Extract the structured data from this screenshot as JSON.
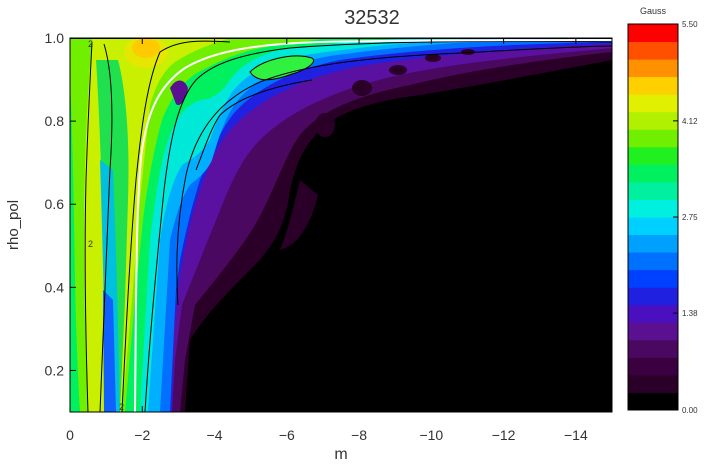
{
  "chart_data": {
    "type": "heatmap",
    "title": "32532",
    "xlabel": "m",
    "ylabel": "rho_pol",
    "xlim": [
      0,
      -15
    ],
    "ylim": [
      0.1,
      1.0
    ],
    "x_ticks": [
      0,
      -2,
      -4,
      -6,
      -8,
      -10,
      -12,
      -14
    ],
    "y_ticks": [
      0.2,
      0.4,
      0.6,
      0.8,
      1.0
    ],
    "x_tick_labels": [
      "0",
      "−2",
      "−4",
      "−6",
      "−8",
      "−10",
      "−12",
      "−14"
    ],
    "y_tick_labels": [
      "0.2",
      "0.4",
      "0.6",
      "0.8",
      "1.0"
    ],
    "colorbar": {
      "label": "Gauss",
      "range": [
        0.0,
        5.5
      ],
      "ticks": [
        0.0,
        1.38,
        2.75,
        4.12,
        5.5
      ],
      "tick_labels": [
        "0.00",
        "1.38",
        "2.75",
        "4.12",
        "5.50"
      ],
      "colors": [
        "#000000",
        "#2b0028",
        "#3a0040",
        "#4a0860",
        "#5a1090",
        "#4a10c0",
        "#2020e0",
        "#0040ff",
        "#0070ff",
        "#00a0ff",
        "#00d0ff",
        "#00f0e0",
        "#00f0a0",
        "#00f060",
        "#20f020",
        "#70f000",
        "#b0f000",
        "#e0f000",
        "#ffd000",
        "#ff9000",
        "#ff5000",
        "#ff0000"
      ]
    },
    "contour_labels": [
      "2",
      "2",
      "2"
    ],
    "q_surface_line": "white"
  }
}
